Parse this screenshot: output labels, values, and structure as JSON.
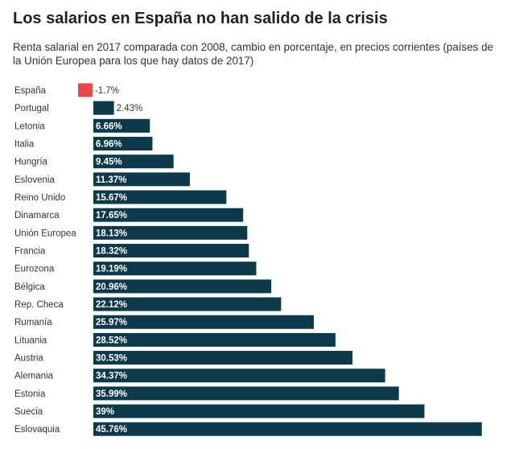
{
  "chart_data": {
    "type": "bar",
    "orientation": "horizontal",
    "title": "Los salarios en España no han salido de la crisis",
    "subtitle": "Renta salarial en 2017 comparada con 2008, cambio en porcentaje, en precios corrientes (países de la Unión Europea para los que hay datos de 2017)",
    "categories": [
      "España",
      "Portugal",
      "Letonia",
      "Italia",
      "Hungría",
      "Eslovenia",
      "Reino Unido",
      "Dinamarca",
      "Unión Europea",
      "Francia",
      "Eurozona",
      "Bélgica",
      "Rep. Checa",
      "Rumanía",
      "Lituania",
      "Austria",
      "Alemania",
      "Estonia",
      "Suecia",
      "Eslovaquia"
    ],
    "values": [
      -1.7,
      2.43,
      6.66,
      6.96,
      9.45,
      11.37,
      15.67,
      17.65,
      18.13,
      18.32,
      19.19,
      20.96,
      22.12,
      25.97,
      28.52,
      30.53,
      34.37,
      35.99,
      39,
      45.76
    ],
    "labels": [
      "-1.7%",
      "2.43%",
      "6.66%",
      "6.96%",
      "9.45%",
      "11.37%",
      "15.67%",
      "17.65%",
      "18.13%",
      "18.32%",
      "19.19%",
      "20.96%",
      "22.12%",
      "25.97%",
      "28.52%",
      "30.53%",
      "34.37%",
      "35.99%",
      "39%",
      "45.76%"
    ],
    "xlabel": "",
    "ylabel": "",
    "xlim": [
      -1.7,
      45.76
    ],
    "grid": false,
    "colors": {
      "positive": "#0d3a4a",
      "negative": "#e8484a"
    }
  }
}
